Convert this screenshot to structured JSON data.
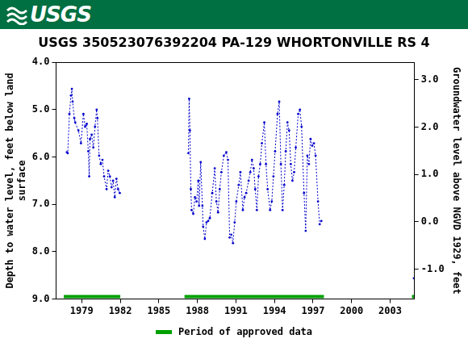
{
  "header": {
    "logo_text": "USGS"
  },
  "chart_data": {
    "type": "line",
    "title": "USGS 350523076392204 PA-129 WHORTONVILLE RS 4",
    "x_label": null,
    "y_label": [
      "Depth to water level, feet below land",
      "surface"
    ],
    "y2_label": "Groundwater level above NGVD 1929, feet",
    "grid": false,
    "xlim": [
      1977.0,
      2004.9
    ],
    "xticks": [
      1979,
      1982,
      1985,
      1988,
      1991,
      1994,
      1997,
      2000,
      2003
    ],
    "ylim": [
      4.0,
      9.0
    ],
    "yticks": [
      {
        "value": 4,
        "label": "4.0"
      },
      {
        "value": 5,
        "label": "5.0"
      },
      {
        "value": 6,
        "label": "6.0"
      },
      {
        "value": 7,
        "label": "7.0"
      },
      {
        "value": 8,
        "label": "8.0"
      },
      {
        "value": 9,
        "label": "9.0"
      }
    ],
    "y2lim": [
      -1.63,
      3.37
    ],
    "y2ticks": [
      {
        "value": -1,
        "label": "-1.0"
      },
      {
        "value": 0,
        "label": "0.0"
      },
      {
        "value": 1,
        "label": "1.0"
      },
      {
        "value": 2,
        "label": "2.0"
      },
      {
        "value": 3,
        "label": "3.0"
      }
    ],
    "series": [
      {
        "color": "#0000cc",
        "marker": "circle",
        "line_style": "dotted",
        "x": [
          1977.84,
          1977.91,
          1978.04,
          1978.16,
          1978.23,
          1978.29,
          1978.42,
          1978.49,
          1978.74,
          1978.94,
          1979.13,
          1979.26,
          1979.39,
          1979.51,
          1979.58,
          1979.64,
          1979.77,
          1979.9,
          1980.03,
          1980.16,
          1980.22,
          1980.35,
          1980.48,
          1980.61,
          1980.74,
          1980.93,
          1981.06,
          1981.19,
          1981.32,
          1981.44,
          1981.57,
          1981.7,
          1981.83,
          1981.96,
          null,
          1987.3,
          1987.36,
          1987.42,
          1987.49,
          1987.55,
          1987.68,
          1987.81,
          1987.94,
          1988.07,
          1988.13,
          1988.26,
          1988.39,
          1988.45,
          1988.58,
          1988.71,
          1988.84,
          1988.97,
          1989.16,
          1989.35,
          1989.48,
          1989.61,
          1989.74,
          1989.87,
          1990.06,
          1990.25,
          1990.38,
          1990.51,
          1990.64,
          1990.77,
          1990.9,
          1991.03,
          1991.22,
          1991.35,
          1991.54,
          1991.67,
          1991.8,
          1991.99,
          1992.12,
          1992.25,
          1992.38,
          1992.5,
          1992.63,
          1992.76,
          1992.89,
          1993.02,
          1993.21,
          1993.34,
          1993.47,
          1993.66,
          1993.79,
          1993.92,
          1994.05,
          1994.24,
          1994.37,
          1994.5,
          1994.63,
          1994.76,
          1994.88,
          1995.01,
          1995.14,
          1995.27,
          1995.4,
          1995.53,
          1995.66,
          1995.85,
          1995.98,
          1996.11,
          1996.3,
          1996.43,
          1996.56,
          1996.68,
          1996.81,
          1996.94,
          1997.07,
          1997.2,
          1997.39,
          1997.52,
          1997.65,
          null,
          2004.85
        ],
        "values": [
          5.9,
          5.92,
          5.09,
          4.7,
          4.56,
          4.83,
          5.18,
          5.27,
          5.44,
          5.71,
          5.09,
          5.36,
          5.3,
          5.88,
          6.41,
          5.62,
          5.53,
          5.8,
          5.36,
          5.0,
          5.18,
          5.97,
          6.15,
          6.06,
          6.41,
          6.68,
          6.29,
          6.41,
          6.64,
          6.5,
          6.85,
          6.46,
          6.68,
          6.76,
          null,
          5.92,
          4.77,
          5.44,
          6.68,
          7.12,
          7.2,
          6.85,
          6.94,
          6.5,
          7.03,
          6.11,
          7.03,
          7.47,
          7.73,
          7.38,
          7.35,
          7.29,
          6.76,
          6.24,
          6.94,
          7.17,
          6.68,
          6.32,
          5.97,
          5.9,
          6.06,
          7.7,
          7.64,
          7.82,
          7.38,
          6.94,
          6.59,
          6.32,
          7.12,
          6.85,
          6.76,
          6.5,
          6.32,
          6.06,
          6.24,
          6.68,
          7.12,
          6.41,
          6.15,
          5.71,
          5.27,
          6.15,
          6.68,
          7.12,
          6.94,
          6.41,
          5.88,
          5.09,
          4.83,
          6.15,
          7.12,
          6.59,
          5.88,
          5.27,
          5.44,
          6.15,
          6.5,
          6.32,
          5.8,
          5.09,
          5.0,
          5.36,
          6.76,
          7.56,
          5.97,
          6.15,
          5.62,
          5.76,
          5.71,
          5.97,
          6.94,
          7.42,
          7.35,
          null,
          8.56
        ]
      }
    ],
    "approved_data": {
      "label": "Period of approved data",
      "color": "#00a000",
      "periods": [
        [
          1977.6,
          1982.0
        ],
        [
          1987.0,
          1997.85
        ],
        [
          2004.7,
          2004.9
        ]
      ]
    }
  }
}
